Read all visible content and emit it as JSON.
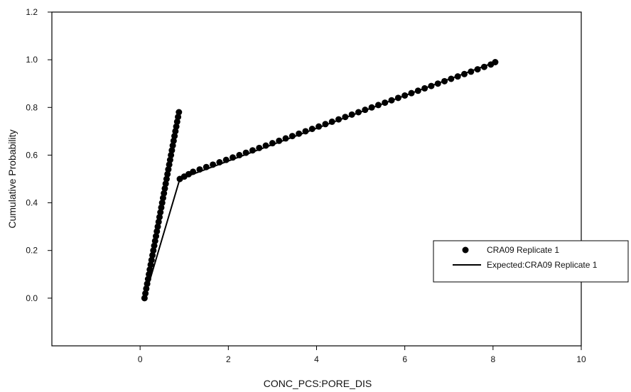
{
  "chart_data": {
    "type": "scatter",
    "xlabel": "CONC_PCS:PORE_DIS",
    "ylabel": "Cumulative Probability",
    "xlim": [
      -2,
      10
    ],
    "ylim": [
      -0.2,
      1.2
    ],
    "xticks": [
      0,
      2,
      4,
      6,
      8,
      10
    ],
    "yticks": [
      0.0,
      0.2,
      0.4,
      0.6,
      0.8,
      1.0,
      1.2
    ],
    "ytick_labels": [
      "0.0",
      "0.2",
      "0.4",
      "0.6",
      "0.8",
      "1.0",
      "1.2"
    ],
    "grid": false,
    "legend_position": "right",
    "series": [
      {
        "name": "CRA09 Replicate 1",
        "marker": "filled-circle",
        "color": "#000000",
        "x": [
          0.1,
          0.12,
          0.14,
          0.16,
          0.18,
          0.2,
          0.22,
          0.24,
          0.26,
          0.28,
          0.3,
          0.32,
          0.34,
          0.36,
          0.38,
          0.4,
          0.42,
          0.44,
          0.46,
          0.48,
          0.5,
          0.52,
          0.54,
          0.56,
          0.58,
          0.6,
          0.62,
          0.64,
          0.66,
          0.68,
          0.7,
          0.72,
          0.74,
          0.76,
          0.78,
          0.8,
          0.82,
          0.84,
          0.86,
          0.88,
          0.9,
          1.0,
          1.1,
          1.2,
          1.35,
          1.5,
          1.65,
          1.8,
          1.95,
          2.1,
          2.25,
          2.4,
          2.55,
          2.7,
          2.85,
          3.0,
          3.15,
          3.3,
          3.45,
          3.6,
          3.75,
          3.9,
          4.05,
          4.2,
          4.35,
          4.5,
          4.65,
          4.8,
          4.95,
          5.1,
          5.25,
          5.4,
          5.55,
          5.7,
          5.85,
          6.0,
          6.15,
          6.3,
          6.45,
          6.6,
          6.75,
          6.9,
          7.05,
          7.2,
          7.35,
          7.5,
          7.65,
          7.8,
          7.95,
          8.05
        ],
        "y": [
          0.0,
          0.02,
          0.04,
          0.06,
          0.08,
          0.1,
          0.12,
          0.14,
          0.16,
          0.18,
          0.2,
          0.22,
          0.24,
          0.26,
          0.28,
          0.3,
          0.32,
          0.34,
          0.36,
          0.38,
          0.4,
          0.42,
          0.44,
          0.46,
          0.48,
          0.5,
          0.52,
          0.54,
          0.56,
          0.58,
          0.6,
          0.62,
          0.64,
          0.66,
          0.68,
          0.7,
          0.72,
          0.74,
          0.76,
          0.78,
          0.5,
          0.51,
          0.52,
          0.53,
          0.54,
          0.55,
          0.56,
          0.57,
          0.58,
          0.59,
          0.6,
          0.61,
          0.62,
          0.63,
          0.64,
          0.65,
          0.66,
          0.67,
          0.68,
          0.69,
          0.7,
          0.71,
          0.72,
          0.73,
          0.74,
          0.75,
          0.76,
          0.77,
          0.78,
          0.79,
          0.8,
          0.81,
          0.82,
          0.83,
          0.84,
          0.85,
          0.86,
          0.87,
          0.88,
          0.89,
          0.9,
          0.91,
          0.92,
          0.93,
          0.94,
          0.95,
          0.96,
          0.97,
          0.98,
          0.99
        ]
      },
      {
        "name": "Expected:CRA09 Replicate 1",
        "marker": "line",
        "color": "#000000",
        "x": [
          0.1,
          0.9,
          8.05
        ],
        "y": [
          0.0,
          0.5,
          0.99
        ]
      }
    ]
  }
}
